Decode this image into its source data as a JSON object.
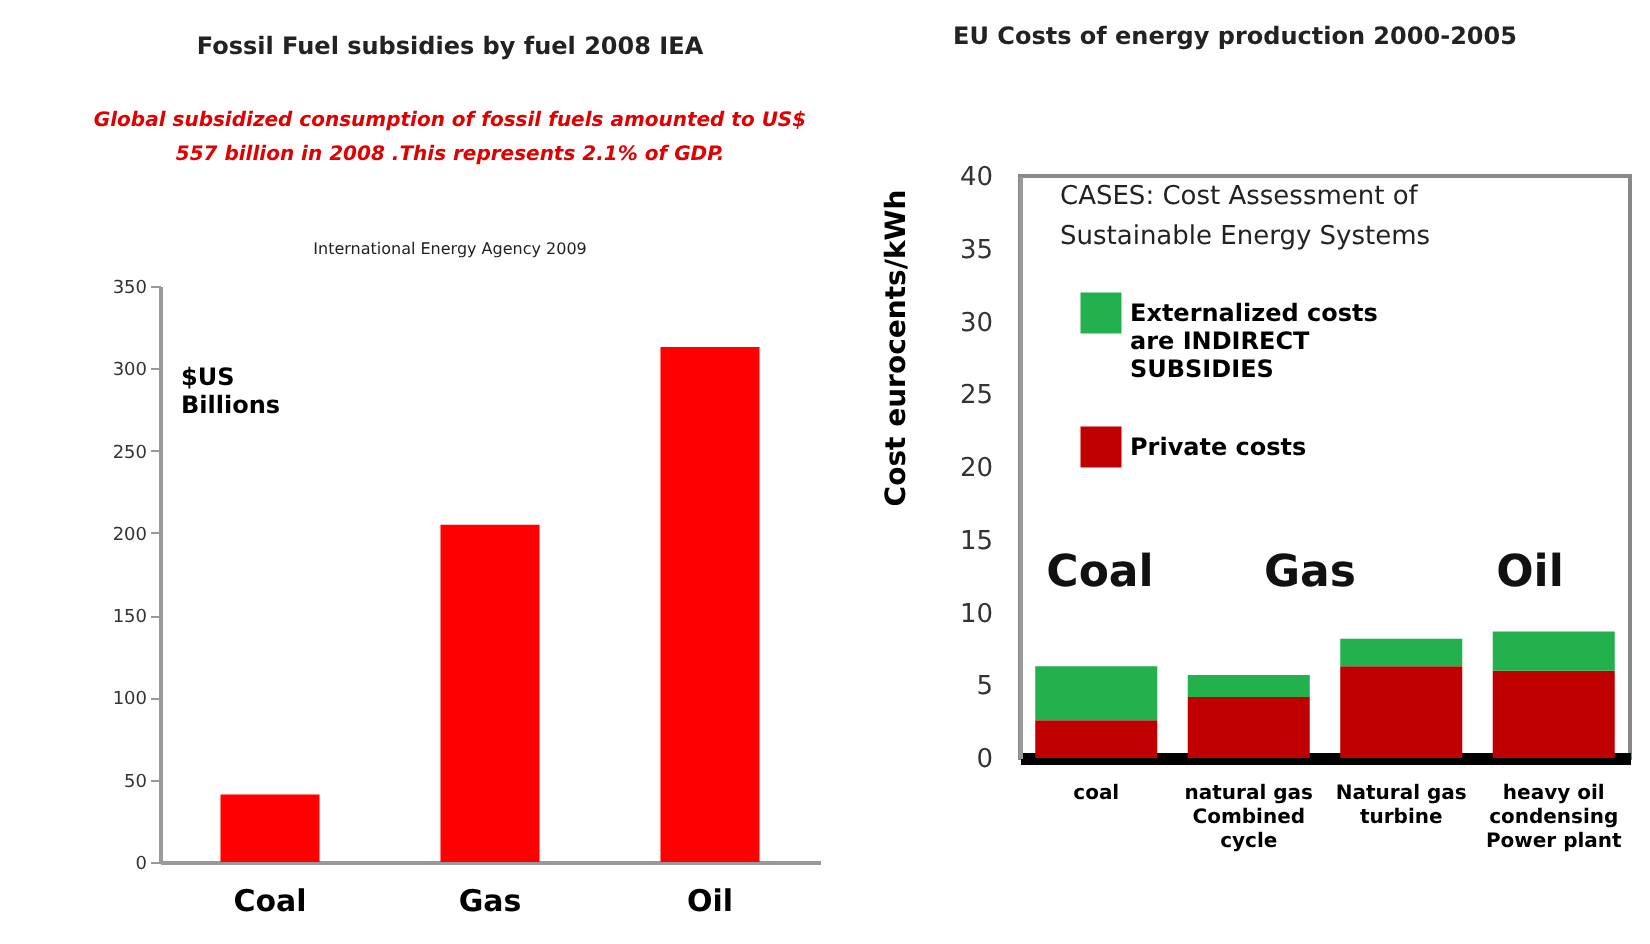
{
  "chart_data": [
    {
      "type": "bar",
      "title": "Fossil Fuel subsidies by fuel 2008 IEA",
      "annotations": [
        "Global subsidized consumption of fossil fuels amounted to US$ 557 billion in 2008 .This represents 2.1% of GDP.",
        "International Energy Agency 2009"
      ],
      "ylabel": "$US Billions",
      "categories": [
        "Coal",
        "Gas",
        "Oil"
      ],
      "values": [
        41,
        205,
        313
      ],
      "color": "#ff0000",
      "ylim": [
        0,
        350
      ],
      "yticks": [
        0,
        50,
        100,
        150,
        200,
        250,
        300,
        350
      ]
    },
    {
      "type": "bar",
      "title": "EU Costs of energy production 2000-2005",
      "annotations": [
        "CASES: Cost Assessment of Sustainable Energy Systems",
        "Coal",
        "Gas",
        "Oil"
      ],
      "ylabel": "Cost eurocents/kWh",
      "categories": [
        "coal",
        "natural gas Combined cycle",
        "Natural gas turbine",
        "heavy oil condensing Power plant"
      ],
      "stacked": true,
      "legend": "top left",
      "series": [
        {
          "name": "Private costs",
          "color": "#c00000",
          "values": [
            2.6,
            4.2,
            6.3,
            6.0
          ]
        },
        {
          "name": "Externalized costs are INDIRECT SUBSIDIES",
          "color": "#22b14c",
          "values": [
            3.7,
            1.5,
            1.9,
            2.7
          ]
        }
      ],
      "ylim": [
        0,
        40
      ],
      "yticks": [
        0,
        5,
        10,
        15,
        20,
        25,
        30,
        35,
        40
      ]
    }
  ]
}
